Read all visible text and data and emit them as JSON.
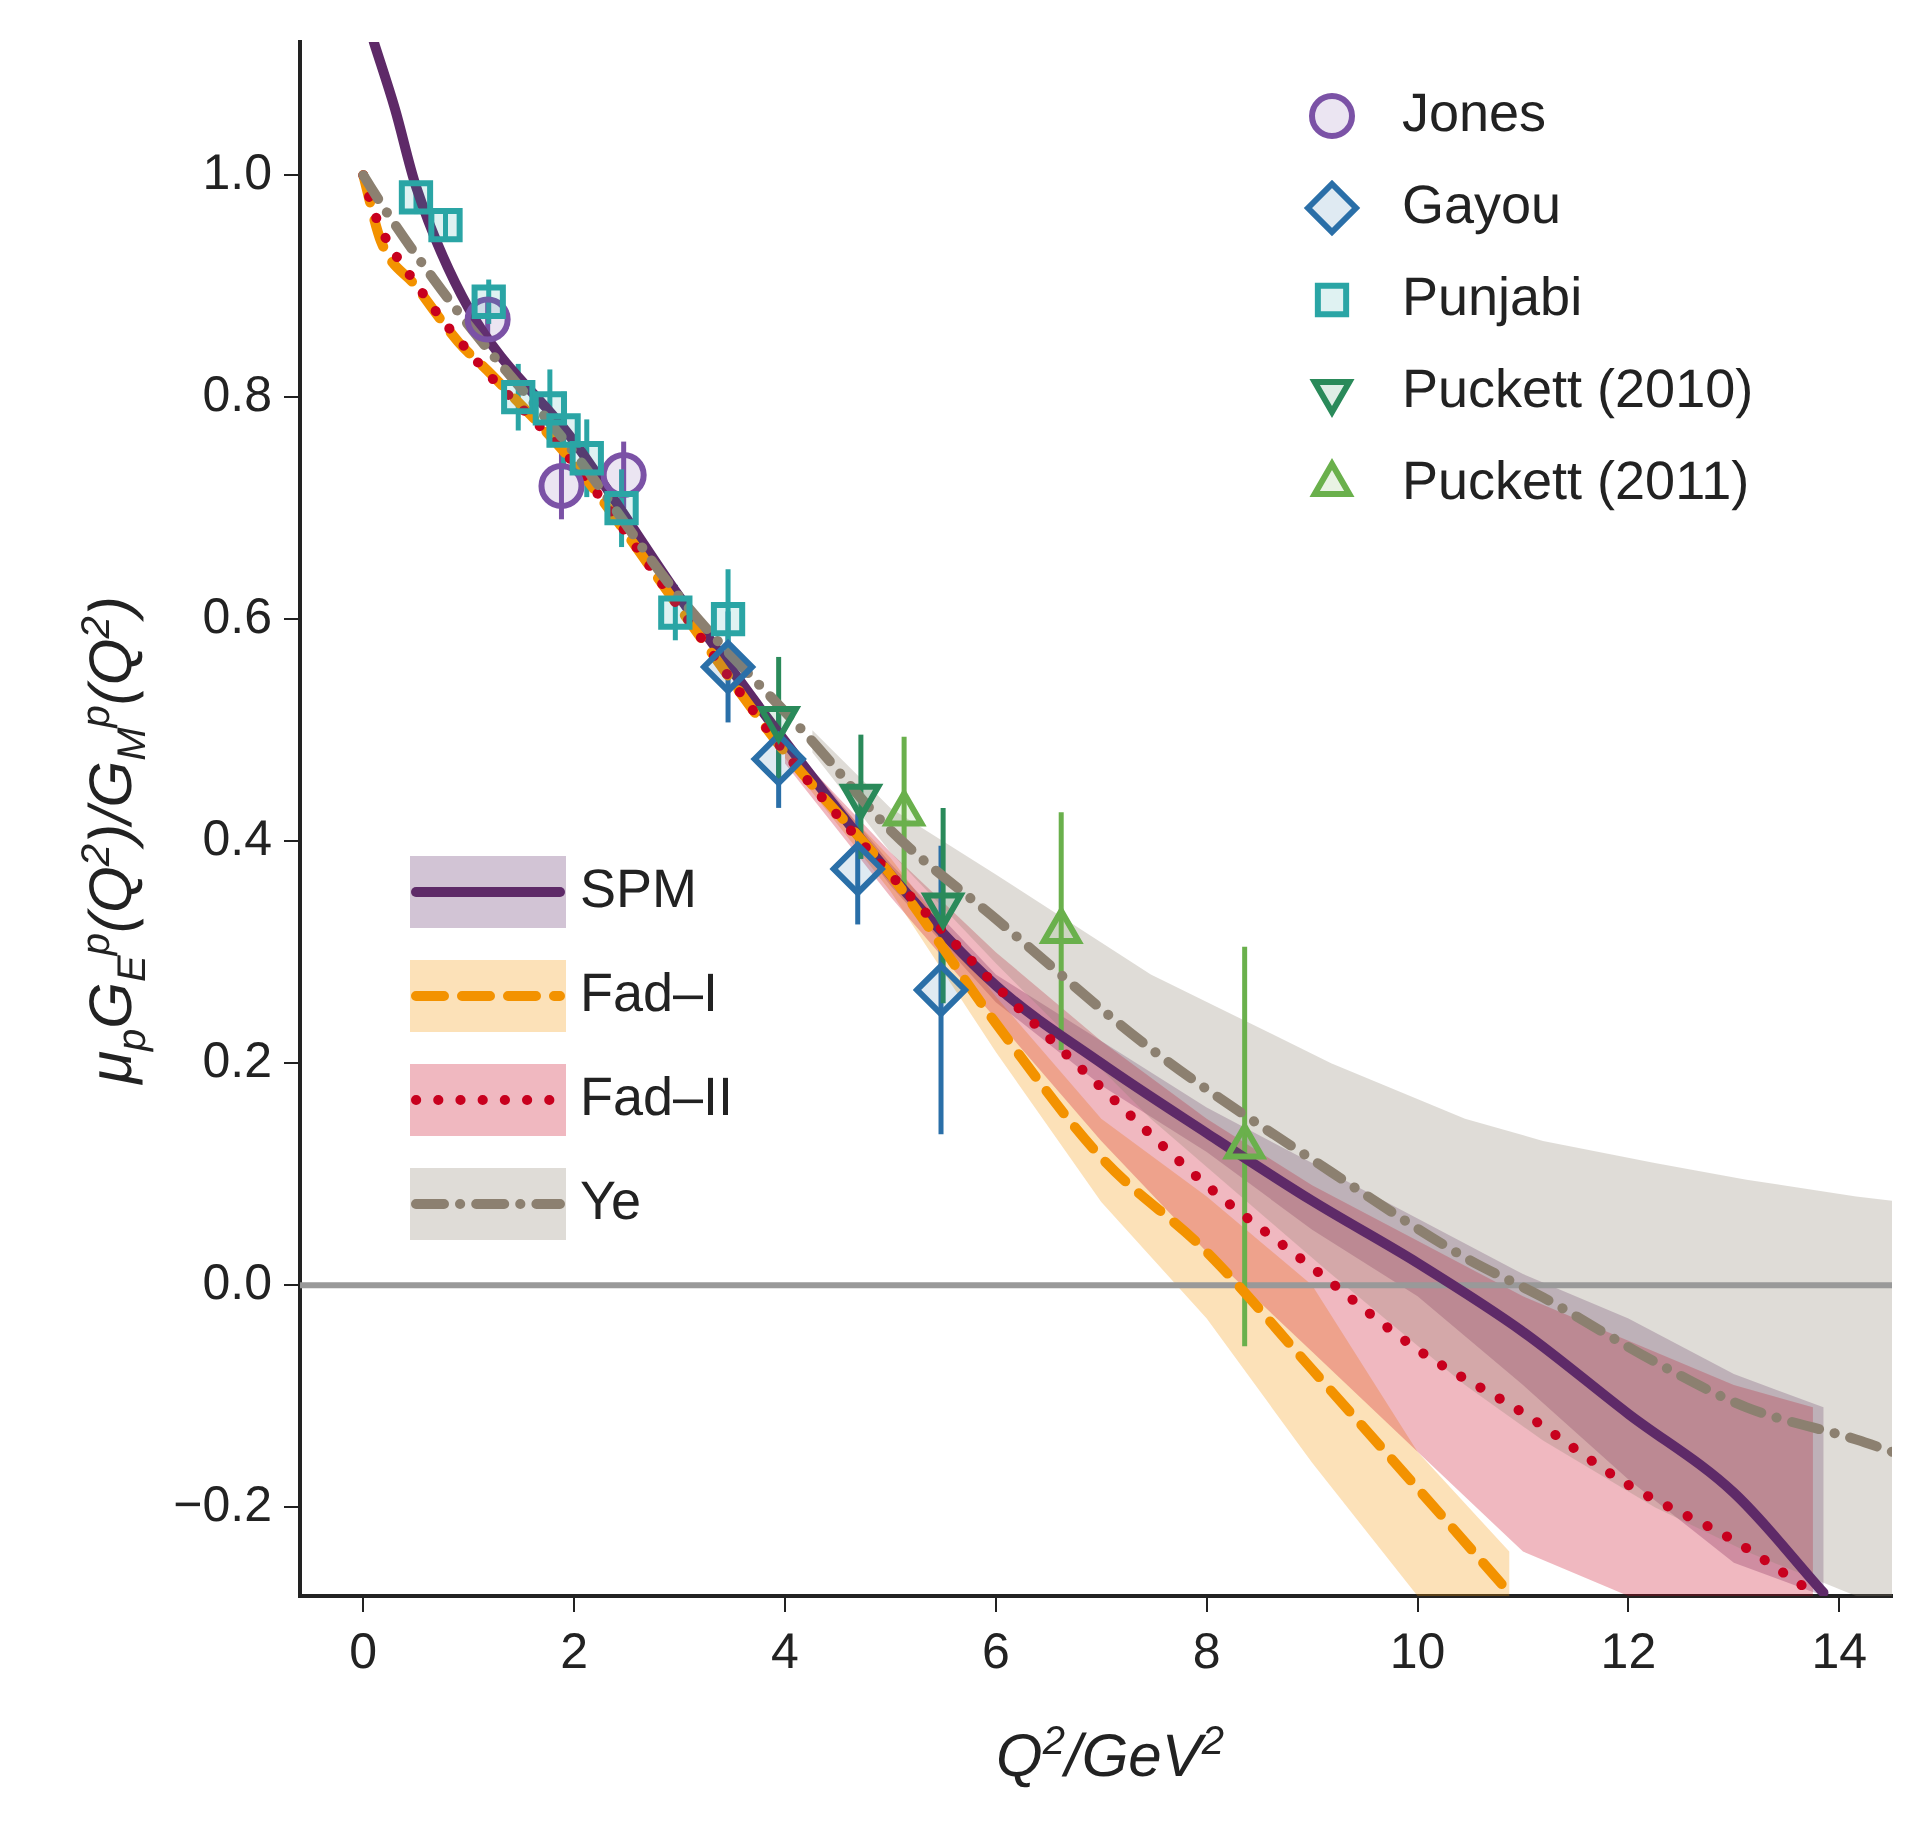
{
  "chart_data": {
    "type": "line",
    "xlabel": "Q$^{2}$/GeV$^{2}$",
    "ylabel": "μ$_{p}$G$_{E}$$^{p}$(Q$^{2}$)/G$_{M}$$^{p}$(Q$^{2}$)",
    "xlim": [
      -0.6,
      14.5
    ],
    "ylim": [
      -0.28,
      1.12
    ],
    "xticks": [
      0,
      2,
      4,
      6,
      8,
      10,
      12,
      14
    ],
    "yticks": [
      {
        "value": -0.2,
        "label": "−0.2"
      },
      {
        "value": 0,
        "label": "0.0"
      },
      {
        "value": 0.2,
        "label": "0.2"
      },
      {
        "value": 0.4,
        "label": "0.4"
      },
      {
        "value": 0.6,
        "label": "0.6"
      },
      {
        "value": 0.8,
        "label": "0.8"
      },
      {
        "value": 1.0,
        "label": "1.0"
      }
    ],
    "legend": "top right",
    "grid": false,
    "ref_lines": [
      {
        "axis": "y",
        "value": 0,
        "color": "#999999"
      }
    ],
    "series": [
      {
        "name": "SPM",
        "type": "line",
        "color": "#5e2a68",
        "line_style": "solid",
        "marker": "none",
        "x": [
          0.1,
          0.3,
          0.5,
          1,
          2,
          3,
          4,
          5,
          6,
          7,
          8,
          9,
          10,
          11,
          12,
          13,
          13.85
        ],
        "values": [
          1.12,
          1.06,
          0.99,
          0.88,
          0.76,
          0.62,
          0.49,
          0.37,
          0.27,
          0.2,
          0.137,
          0.076,
          0.02,
          -0.042,
          -0.116,
          -0.187,
          -0.277
        ],
        "lower": [
          null,
          null,
          null,
          null,
          null,
          null,
          0.485,
          0.36,
          0.255,
          0.18,
          0.12,
          0.05,
          -0.01,
          -0.09,
          -0.175,
          -0.25,
          -0.28
        ],
        "upper": [
          null,
          null,
          null,
          null,
          null,
          null,
          0.495,
          0.38,
          0.28,
          0.22,
          0.16,
          0.11,
          0.06,
          0.01,
          -0.03,
          -0.08,
          -0.11
        ]
      },
      {
        "name": "Fad–I",
        "type": "line",
        "color": "#f39200",
        "line_style": "dashed",
        "marker": "none",
        "x": [
          0,
          0.17,
          0.5,
          0.9,
          1.22,
          2,
          3,
          4,
          5,
          6,
          7,
          8,
          9,
          10,
          10.87
        ],
        "values": [
          1.0,
          0.94,
          0.9,
          0.85,
          0.82,
          0.74,
          0.61,
          0.48,
          0.37,
          0.236,
          0.115,
          0.03,
          -0.076,
          -0.183,
          -0.277
        ],
        "lower": [
          null,
          null,
          null,
          null,
          null,
          null,
          null,
          0.475,
          0.355,
          0.21,
          0.075,
          -0.03,
          -0.16,
          -0.28,
          -0.28
        ],
        "upper": [
          null,
          null,
          null,
          null,
          null,
          null,
          null,
          0.485,
          0.385,
          0.26,
          0.15,
          0.08,
          0.0,
          -0.15,
          -0.24
        ]
      },
      {
        "name": "Fad–II",
        "type": "line",
        "color": "#c8001e",
        "line_style": "dotted",
        "marker": "none",
        "x": [
          0,
          0.1,
          0.54,
          1.1,
          2,
          3,
          4,
          5,
          6,
          7,
          8,
          9,
          10,
          11,
          12,
          13,
          13.75
        ],
        "values": [
          1.0,
          0.967,
          0.897,
          0.83,
          0.74,
          0.61,
          0.48,
          0.37,
          0.27,
          0.178,
          0.09,
          0.016,
          -0.058,
          -0.115,
          -0.18,
          -0.23,
          -0.277
        ],
        "lower": [
          null,
          null,
          null,
          null,
          null,
          null,
          0.47,
          0.35,
          0.24,
          0.13,
          0.03,
          -0.06,
          -0.15,
          -0.24,
          -0.28,
          -0.28,
          -0.28
        ],
        "upper": [
          null,
          null,
          null,
          null,
          null,
          null,
          0.49,
          0.39,
          0.3,
          0.22,
          0.15,
          0.09,
          0.04,
          -0.01,
          -0.05,
          -0.09,
          -0.11
        ]
      },
      {
        "name": "Ye",
        "type": "line",
        "color": "#8c8070",
        "line_style": "dashdot",
        "marker": "none",
        "x": [
          0,
          0.22,
          0.67,
          1.04,
          2,
          3,
          4.26,
          5,
          6,
          7.47,
          9.18,
          10.45,
          11.19,
          12.25,
          13.12,
          14.16,
          14.5
        ],
        "values": [
          1.0,
          0.967,
          0.906,
          0.86,
          0.75,
          0.62,
          0.49,
          0.41,
          0.33,
          0.213,
          0.102,
          0.025,
          -0.011,
          -0.069,
          -0.11,
          -0.139,
          -0.15
        ],
        "lower": [
          null,
          null,
          null,
          null,
          null,
          null,
          0.48,
          0.39,
          0.29,
          0.15,
          0.01,
          -0.09,
          -0.14,
          -0.2,
          -0.24,
          -0.28,
          -0.28
        ],
        "upper": [
          null,
          null,
          null,
          null,
          null,
          null,
          0.5,
          0.43,
          0.37,
          0.28,
          0.2,
          0.15,
          0.13,
          0.11,
          0.095,
          0.08,
          0.076
        ]
      },
      {
        "name": "Jones",
        "type": "scatter",
        "color": "#7b52a6",
        "marker": "circle",
        "x": [
          1.18,
          1.88,
          2.47
        ],
        "values": [
          0.87,
          0.72,
          0.73
        ],
        "errors": [
          0.02,
          0.03,
          0.03
        ]
      },
      {
        "name": "Gayou",
        "type": "scatter",
        "color": "#2a6fa8",
        "marker": "diamond",
        "x": [
          3.46,
          3.94,
          4.69,
          5.48
        ],
        "values": [
          0.557,
          0.474,
          0.375,
          0.266
        ],
        "errors": [
          0.05,
          0.044,
          0.05,
          0.13
        ]
      },
      {
        "name": "Punjabi",
        "type": "scatter",
        "color": "#2aa5a5",
        "marker": "square",
        "x": [
          0.5,
          0.78,
          1.19,
          1.47,
          1.77,
          1.9,
          2.12,
          2.45,
          2.96,
          3.46
        ],
        "values": [
          0.98,
          0.955,
          0.886,
          0.8,
          0.79,
          0.77,
          0.745,
          0.7,
          0.606,
          0.6
        ],
        "errors": [
          0.015,
          0.015,
          0.02,
          0.03,
          0.035,
          0.035,
          0.035,
          0.035,
          0.025,
          0.045
        ]
      },
      {
        "name": "Puckett (2010)",
        "type": "scatter",
        "color": "#2a8a5a",
        "marker": "triangle-down",
        "x": [
          3.94,
          4.72,
          5.5
        ],
        "values": [
          0.51,
          0.44,
          0.342
        ],
        "errors": [
          0.056,
          0.056,
          0.088
        ]
      },
      {
        "name": "Puckett (2011)",
        "type": "scatter",
        "color": "#6ab04c",
        "marker": "triangle",
        "x": [
          5.13,
          6.62,
          8.36
        ],
        "values": [
          0.425,
          0.319,
          0.125
        ],
        "errors": [
          0.069,
          0.107,
          0.18
        ]
      }
    ]
  }
}
